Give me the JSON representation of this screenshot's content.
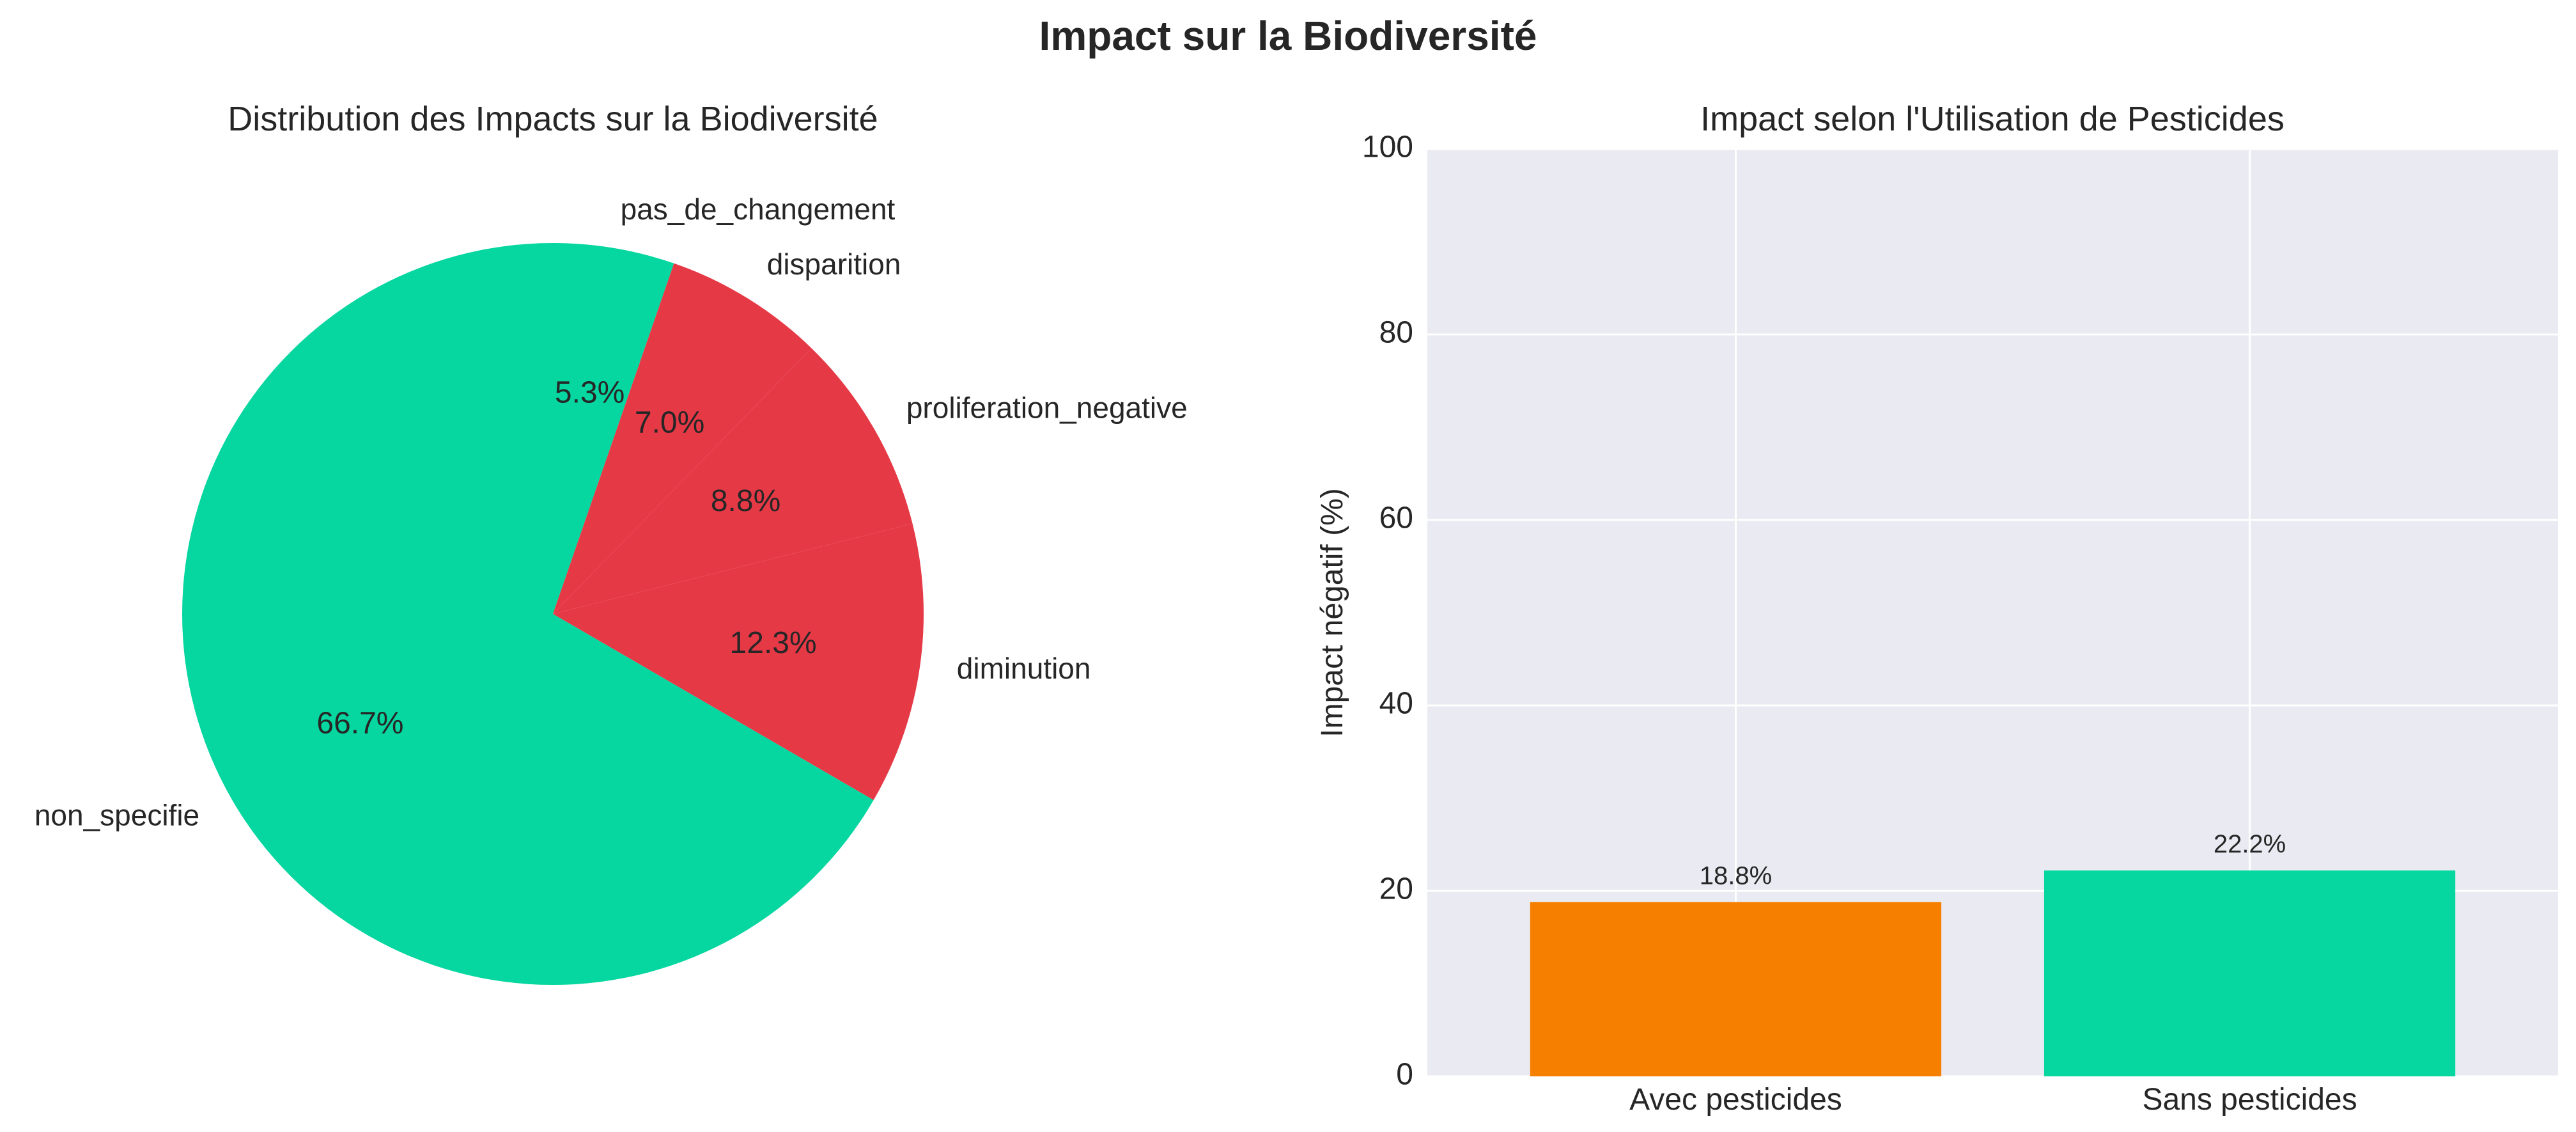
{
  "figure": {
    "title": "Impact sur la Biodiversité",
    "colors": {
      "teal": "#06D6A0",
      "red": "#E63946",
      "orange": "#F77F00",
      "plot_bg": "#EAEAF2",
      "grid": "#FFFFFF",
      "text": "#262626"
    }
  },
  "chart_data": [
    {
      "type": "pie",
      "title": "Distribution des Impacts sur la Biodiversité",
      "start_angle_deg": 90,
      "direction": "clockwise",
      "slices": [
        {
          "label": "pas_de_changement",
          "value": 5.3,
          "pct_label": "5.3%",
          "color": "#06D6A0"
        },
        {
          "label": "disparition",
          "value": 7.0,
          "pct_label": "7.0%",
          "color": "#E63946"
        },
        {
          "label": "proliferation_negative",
          "value": 8.8,
          "pct_label": "8.8%",
          "color": "#E63946"
        },
        {
          "label": "diminution",
          "value": 12.3,
          "pct_label": "12.3%",
          "color": "#E63946"
        },
        {
          "label": "non_specifie",
          "value": 66.7,
          "pct_label": "66.7%",
          "color": "#06D6A0"
        }
      ]
    },
    {
      "type": "bar",
      "title": "Impact selon l'Utilisation de Pesticides",
      "categories": [
        "Avec pesticides",
        "Sans pesticides"
      ],
      "values": [
        18.8,
        22.2
      ],
      "value_labels": [
        "18.8%",
        "22.2%"
      ],
      "colors": [
        "#F77F00",
        "#06D6A0"
      ],
      "xlabel": "",
      "ylabel": "Impact négatif (%)",
      "ylim": [
        0,
        100
      ],
      "yticks": [
        0,
        20,
        40,
        60,
        80,
        100
      ],
      "grid": true
    }
  ]
}
